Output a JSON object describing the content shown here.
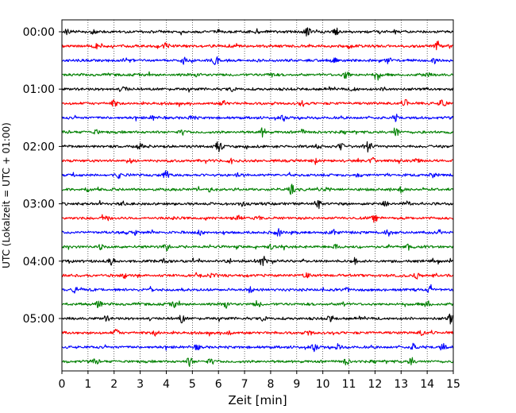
{
  "chart_data": {
    "type": "line",
    "title": "",
    "xlabel": "Zeit  [min]",
    "ylabel": "UTC (Lokalzeit = UTC + 01:00)",
    "xlim": [
      0,
      15
    ],
    "x_ticks": [
      "0",
      "1",
      "2",
      "3",
      "4",
      "5",
      "6",
      "7",
      "8",
      "9",
      "10",
      "11",
      "12",
      "13",
      "14",
      "15"
    ],
    "y_tick_labels": [
      "00:00",
      "01:00",
      "02:00",
      "03:00",
      "04:00",
      "05:00"
    ],
    "grid": "vertical dotted lines at each minute",
    "trace_interval_min": 15,
    "trace_count": 24,
    "trace_colors": [
      "#000000",
      "#ff0000",
      "#0000ff",
      "#008000"
    ],
    "bursts": [
      [
        [
          9.4,
          1.0
        ],
        [
          10.5,
          0.7
        ],
        [
          0.2,
          0.5
        ],
        [
          1.2,
          0.4
        ],
        [
          7.5,
          0.4
        ]
      ],
      [
        [
          14.4,
          1.0
        ],
        [
          6.5,
          0.5
        ],
        [
          4.0,
          0.6
        ],
        [
          1.3,
          0.4
        ],
        [
          11.0,
          0.4
        ]
      ],
      [
        [
          5.9,
          1.0
        ],
        [
          2.5,
          0.6
        ],
        [
          4.7,
          0.7
        ],
        [
          10.4,
          0.5
        ],
        [
          12.5,
          0.5
        ],
        [
          14.3,
          0.4
        ]
      ],
      [
        [
          10.9,
          1.0
        ],
        [
          12.1,
          0.8
        ],
        [
          5.2,
          0.4
        ],
        [
          14.0,
          0.4
        ],
        [
          8.0,
          0.4
        ]
      ],
      [
        [
          2.4,
          0.5
        ],
        [
          6.5,
          0.4
        ],
        [
          12.4,
          0.4
        ],
        [
          11.2,
          0.4
        ]
      ],
      [
        [
          14.6,
          1.0
        ],
        [
          2.0,
          0.6
        ],
        [
          6.2,
          0.5
        ],
        [
          13.2,
          0.6
        ],
        [
          9.2,
          0.4
        ]
      ],
      [
        [
          5.0,
          0.4
        ],
        [
          8.5,
          0.4
        ],
        [
          12.8,
          0.5
        ],
        [
          3.5,
          0.4
        ]
      ],
      [
        [
          12.8,
          0.9
        ],
        [
          7.7,
          0.8
        ],
        [
          1.3,
          0.4
        ],
        [
          9.2,
          0.4
        ],
        [
          4.6,
          0.4
        ]
      ],
      [
        [
          6.0,
          1.0
        ],
        [
          11.7,
          1.0
        ],
        [
          10.7,
          0.6
        ],
        [
          9.8,
          0.4
        ],
        [
          3.0,
          0.4
        ]
      ],
      [
        [
          9.7,
          0.5
        ],
        [
          11.9,
          0.6
        ],
        [
          6.5,
          0.4
        ],
        [
          2.6,
          0.4
        ],
        [
          13.6,
          0.4
        ]
      ],
      [
        [
          4.0,
          0.8
        ],
        [
          2.2,
          0.5
        ],
        [
          11.4,
          0.4
        ],
        [
          6.8,
          0.4
        ],
        [
          14.2,
          0.4
        ]
      ],
      [
        [
          8.8,
          0.8
        ],
        [
          10.2,
          0.5
        ],
        [
          13.0,
          0.5
        ],
        [
          1.0,
          0.4
        ],
        [
          5.7,
          0.4
        ]
      ],
      [
        [
          9.8,
          0.9
        ],
        [
          2.3,
          0.4
        ],
        [
          12.4,
          0.5
        ],
        [
          13.2,
          0.5
        ],
        [
          6.9,
          0.4
        ]
      ],
      [
        [
          6.8,
          0.8
        ],
        [
          1.7,
          0.5
        ],
        [
          7.5,
          0.5
        ],
        [
          12.0,
          0.4
        ],
        [
          4.4,
          0.4
        ]
      ],
      [
        [
          8.3,
          0.7
        ],
        [
          12.5,
          0.7
        ],
        [
          10.4,
          0.6
        ],
        [
          2.8,
          0.4
        ],
        [
          5.3,
          0.4
        ]
      ],
      [
        [
          4.0,
          0.6
        ],
        [
          8.0,
          0.4
        ],
        [
          10.5,
          0.4
        ],
        [
          13.3,
          0.5
        ],
        [
          1.5,
          0.4
        ]
      ],
      [
        [
          1.9,
          0.7
        ],
        [
          7.7,
          1.0
        ],
        [
          6.4,
          0.4
        ],
        [
          11.2,
          0.5
        ],
        [
          3.9,
          0.4
        ]
      ],
      [
        [
          9.4,
          0.5
        ],
        [
          13.6,
          0.6
        ],
        [
          2.4,
          0.4
        ],
        [
          5.8,
          0.4
        ]
      ],
      [
        [
          0.5,
          0.6
        ],
        [
          3.4,
          0.5
        ],
        [
          7.2,
          0.5
        ],
        [
          10.9,
          0.4
        ],
        [
          14.1,
          0.5
        ]
      ],
      [
        [
          1.4,
          0.6
        ],
        [
          6.3,
          0.8
        ],
        [
          7.5,
          0.6
        ],
        [
          14.0,
          0.6
        ],
        [
          4.3,
          0.5
        ],
        [
          10.8,
          0.4
        ]
      ],
      [
        [
          4.6,
          0.7
        ],
        [
          14.9,
          0.9
        ],
        [
          7.7,
          0.4
        ],
        [
          10.3,
          0.5
        ],
        [
          1.7,
          0.4
        ]
      ],
      [
        [
          2.1,
          0.6
        ],
        [
          3.6,
          0.5
        ],
        [
          13.8,
          0.5
        ],
        [
          9.5,
          0.4
        ],
        [
          6.4,
          0.4
        ]
      ],
      [
        [
          9.7,
          0.7
        ],
        [
          13.5,
          0.7
        ],
        [
          14.6,
          0.6
        ],
        [
          10.6,
          0.5
        ],
        [
          5.2,
          0.4
        ]
      ],
      [
        [
          4.9,
          0.8
        ],
        [
          5.7,
          0.5
        ],
        [
          13.4,
          0.7
        ],
        [
          10.9,
          0.5
        ],
        [
          1.3,
          0.4
        ]
      ]
    ]
  }
}
